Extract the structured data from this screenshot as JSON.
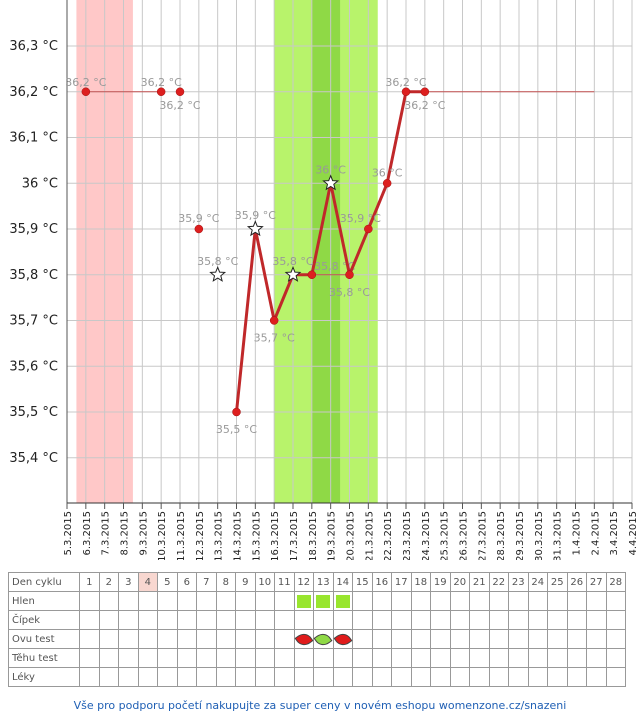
{
  "chart_data": {
    "type": "line",
    "y_unit": "°C",
    "yticks": [
      "35,4 °C",
      "35,5 °C",
      "35,6 °C",
      "35,7 °C",
      "35,8 °C",
      "35,9 °C",
      "36 °C",
      "36,1 °C",
      "36,2 °C",
      "36,3 °C"
    ],
    "ylim": [
      35.3,
      36.4
    ],
    "x_dates": [
      "5.3.2015",
      "6.3.2015",
      "7.3.2015",
      "8.3.2015",
      "9.3.2015",
      "10.3.2015",
      "11.3.2015",
      "12.3.2015",
      "13.3.2015",
      "14.3.2015",
      "15.3.2015",
      "16.3.2015",
      "17.3.2015",
      "18.3.2015",
      "19.3.2015",
      "20.3.2015",
      "21.3.2015",
      "22.3.2015",
      "23.3.2015",
      "24.3.2015",
      "25.3.2015",
      "26.3.2015",
      "27.3.2015",
      "28.3.2015",
      "29.3.2015",
      "30.3.2015",
      "31.3.2015",
      "1.4.2015",
      "2.4.2015",
      "3.4.2015",
      "4.4.2015"
    ],
    "series": [
      {
        "points": [
          {
            "x": "6.3.2015",
            "y": 36.2,
            "label": "36,2 °C",
            "marker": "dot"
          },
          {
            "x": "10.3.2015",
            "y": 36.2,
            "label": "36,2 °C",
            "marker": "dot"
          },
          {
            "x": "11.3.2015",
            "y": 36.2,
            "label": "36,2 °C",
            "marker": "dot"
          },
          {
            "x": "12.3.2015",
            "y": 35.9,
            "label": "35,9 °C",
            "marker": "dot"
          },
          {
            "x": "13.3.2015",
            "y": 35.8,
            "label": "35,8 °C",
            "marker": "star"
          },
          {
            "x": "14.3.2015",
            "y": 35.5,
            "label": "35,5 °C",
            "marker": "dot"
          },
          {
            "x": "15.3.2015",
            "y": 35.9,
            "label": "35,9 °C",
            "marker": "star"
          },
          {
            "x": "16.3.2015",
            "y": 35.7,
            "label": "35,7 °C",
            "marker": "dot"
          },
          {
            "x": "17.3.2015",
            "y": 35.8,
            "label": "35,8 °C",
            "marker": "star"
          },
          {
            "x": "18.3.2015",
            "y": 35.8,
            "label": "",
            "marker": "dot"
          },
          {
            "x": "19.3.2015",
            "y": 36.0,
            "label": "36 °C",
            "marker": "star"
          },
          {
            "x": "20.3.2015",
            "y": 35.8,
            "label": "35,8 °C",
            "marker": "dot"
          },
          {
            "x": "21.3.2015",
            "y": 35.9,
            "label": "35,9 °C",
            "marker": "dot"
          },
          {
            "x": "22.3.2015",
            "y": 36.0,
            "label": "36 °C",
            "marker": "dot"
          },
          {
            "x": "23.3.2015",
            "y": 36.2,
            "label": "36,2 °C",
            "marker": "dot"
          },
          {
            "x": "24.3.2015",
            "y": 36.2,
            "label": "36,2 °C",
            "marker": "dot"
          }
        ]
      }
    ],
    "lines": [
      {
        "from": "6.3.2015",
        "to": "10.3.2015",
        "y": 36.2
      },
      {
        "from": "24.3.2015",
        "to": "2.4.2015",
        "y": 36.2
      },
      {
        "from": "18.3.2015",
        "to": "20.3.2015",
        "y": 35.8,
        "label": "35,8 °C"
      }
    ],
    "bands": [
      {
        "from": "5.3.2015",
        "to": "8.3.2015",
        "color": "#ffc8c8"
      },
      {
        "from": "16.3.2015",
        "to": "21.3.2015",
        "color": "#b8f36b"
      },
      {
        "from": "18.3.2015",
        "to": "19.3.2015",
        "color": "#8fd946"
      }
    ],
    "line_color": "#c0282a",
    "marker_color": "#dd1f1f",
    "grid": true
  },
  "cycle_table": {
    "rows": [
      {
        "label": "Den cyklu",
        "cells": [
          "1",
          "2",
          "3",
          "4",
          "5",
          "6",
          "7",
          "8",
          "9",
          "10",
          "11",
          "12",
          "13",
          "14",
          "15",
          "16",
          "17",
          "18",
          "19",
          "20",
          "21",
          "22",
          "23",
          "24",
          "25",
          "26",
          "27",
          "28"
        ]
      },
      {
        "label": "Hlen"
      },
      {
        "label": "Čípek"
      },
      {
        "label": "Ovu test"
      },
      {
        "label": "Těhu test"
      },
      {
        "label": "Léky"
      }
    ],
    "highlight_day": 4,
    "hlen_days": [
      12,
      13,
      14
    ],
    "ovu_tests": [
      {
        "day": 12,
        "result": "negative"
      },
      {
        "day": 13,
        "result": "positive"
      },
      {
        "day": 14,
        "result": "negative"
      }
    ],
    "colors": {
      "mucus": "#99e62e",
      "ovu_negative": "#e01b1b",
      "ovu_positive": "#8fd946",
      "highlight": "#f8d7d0"
    }
  },
  "footer": "Vše pro podporu početí nakupujte za super ceny v novém eshopu womenzone.cz/snazeni"
}
